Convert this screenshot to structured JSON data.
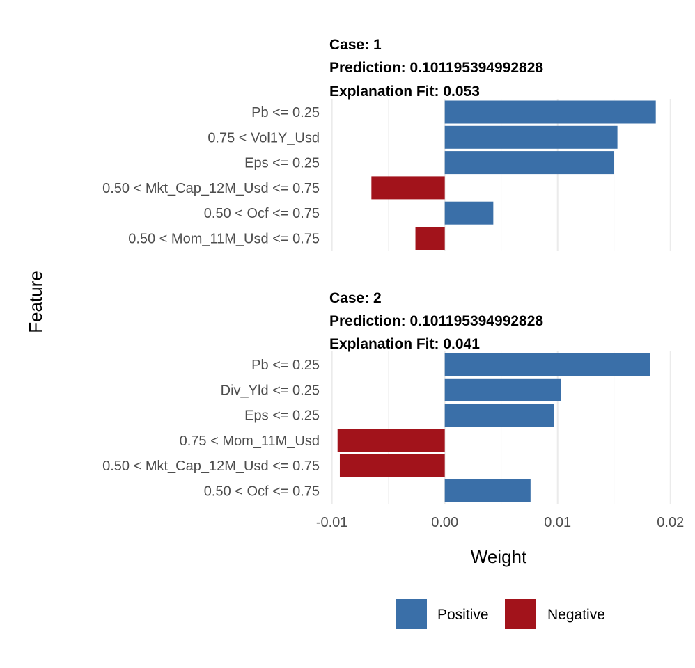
{
  "chart_data": {
    "type": "bar",
    "orientation": "horizontal",
    "xlabel": "Weight",
    "ylabel": "Feature",
    "xlim": [
      -0.0101,
      0.0202
    ],
    "x_ticks": [
      -0.01,
      0.0,
      0.01,
      0.02
    ],
    "x_tick_labels": [
      "-0.01",
      "0.00",
      "0.01",
      "0.02"
    ],
    "grid": true,
    "legend": {
      "placement": "bottom",
      "items": [
        {
          "label": "Positive",
          "color": "#3a6fa8"
        },
        {
          "label": "Negative",
          "color": "#a2131b"
        }
      ]
    },
    "panels": [
      {
        "case_line": "Case: 1",
        "prediction_line": "Prediction: 0.101195394992828",
        "fit_line": "Explanation Fit: 0.053",
        "features": [
          "Pb <= 0.25",
          "0.75 < Vol1Y_Usd",
          "Eps <= 0.25",
          "0.50 < Mkt_Cap_12M_Usd <= 0.75",
          "0.50 < Ocf <= 0.75",
          "0.50 < Mom_11M_Usd <= 0.75"
        ],
        "weights": [
          0.0187,
          0.0153,
          0.015,
          -0.0065,
          0.0043,
          -0.0026
        ]
      },
      {
        "case_line": "Case: 2",
        "prediction_line": "Prediction: 0.101195394992828",
        "fit_line": "Explanation Fit: 0.041",
        "features": [
          "Pb <= 0.25",
          "Div_Yld <= 0.25",
          "Eps <= 0.25",
          "0.75 < Mom_11M_Usd",
          "0.50 < Mkt_Cap_12M_Usd <= 0.75",
          "0.50 < Ocf <= 0.75"
        ],
        "weights": [
          0.0182,
          0.0103,
          0.0097,
          -0.0095,
          -0.0093,
          0.0076
        ]
      }
    ]
  }
}
